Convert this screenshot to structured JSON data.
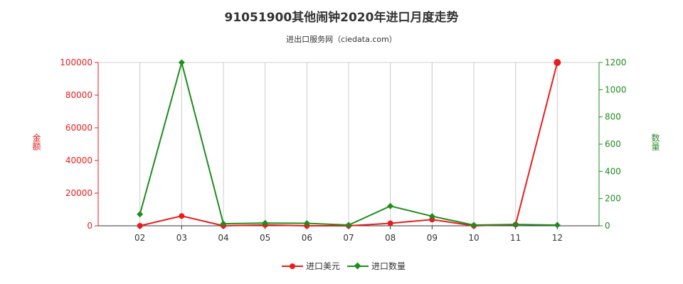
{
  "title": "91051900其他闹钟2020年进口月度走势",
  "subtitle": "进出口服务网（ciedata.com）",
  "colors": {
    "amount": "#e61e1e",
    "quantity": "#1e8c1e",
    "grid": "#cccccc"
  },
  "chart_data": {
    "type": "line",
    "categories": [
      "02",
      "03",
      "04",
      "05",
      "06",
      "07",
      "08",
      "09",
      "10",
      "11",
      "12"
    ],
    "ylabel_left": "金额",
    "ylabel_right": "数量",
    "ylim_left": [
      0,
      100000
    ],
    "ylim_right": [
      0,
      1200
    ],
    "yticks_left": [
      0,
      20000,
      40000,
      60000,
      80000,
      100000
    ],
    "yticks_right": [
      0,
      200,
      400,
      600,
      800,
      1000,
      1200
    ],
    "grid": true,
    "legend_position": "bottom",
    "series": [
      {
        "name": "进口美元",
        "axis": "left",
        "marker": "circle",
        "values": [
          0,
          6000,
          0,
          500,
          0,
          0,
          1500,
          3800,
          0,
          700,
          100000
        ]
      },
      {
        "name": "进口数量",
        "axis": "right",
        "marker": "diamond",
        "values": [
          85,
          1200,
          15,
          20,
          18,
          5,
          145,
          70,
          5,
          10,
          5
        ]
      }
    ]
  }
}
